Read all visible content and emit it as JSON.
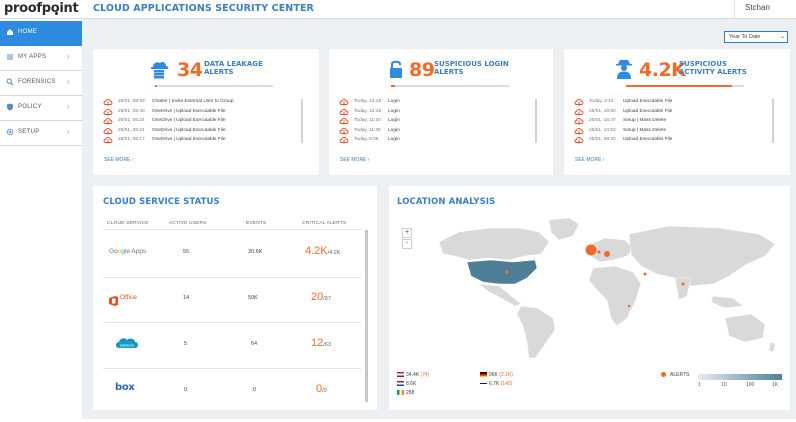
{
  "header": {
    "logo": "proofpoint",
    "title": "CLOUD APPLICATIONS SECURITY CENTER",
    "user": "Stchan"
  },
  "sidebar": {
    "items": [
      {
        "label": "HOME",
        "icon": "home-icon",
        "active": true
      },
      {
        "label": "MY APPS",
        "icon": "list-icon",
        "active": false
      },
      {
        "label": "FORENSICS",
        "icon": "search-icon",
        "active": false
      },
      {
        "label": "POLICY",
        "icon": "shield-icon",
        "active": false
      },
      {
        "label": "SETUP",
        "icon": "gear-icon",
        "active": false
      }
    ]
  },
  "filter": {
    "period": "Year To Date"
  },
  "kpis": [
    {
      "value": "34",
      "label_line1": "DATA LEAKAGE",
      "label_line2": "ALERTS",
      "icon": "cloud-server-icon",
      "fill": 0.02,
      "see_more": "SEE MORE ›",
      "rows": [
        {
          "time": "25/01, 08:53",
          "text": "Chatter | Invite External User to Group"
        },
        {
          "time": "25/01, 05:40",
          "text": "OneDrive | Upload Executable File"
        },
        {
          "time": "25/01, 05:24",
          "text": "OneDrive | Upload Executable File"
        },
        {
          "time": "25/01, 05:21",
          "text": "OneDrive | Upload Executable File"
        },
        {
          "time": "25/01, 05:17",
          "text": "OneDrive | Upload Executable File"
        }
      ]
    },
    {
      "value": "89",
      "label_line1": "SUSPICIOUS LOGIN",
      "label_line2": "ALERTS",
      "icon": "padlock-icon",
      "fill": 0.03,
      "see_more": "SEE MORE ›",
      "rows": [
        {
          "time": "Today, 12:16",
          "text": "Login"
        },
        {
          "time": "Today, 12:16",
          "text": "Login"
        },
        {
          "time": "Today, 11:30",
          "text": "Login"
        },
        {
          "time": "Today, 11:30",
          "text": "Login"
        },
        {
          "time": "Today, 6:06",
          "text": "Login"
        }
      ]
    },
    {
      "value": "4.2K",
      "label_line1": "SUSPICIOUS",
      "label_line2": "ACTIVITY ALERTS",
      "icon": "user-spy-icon",
      "fill": 0.9,
      "see_more": "SEE MORE ›",
      "rows": [
        {
          "time": "Today, 2:13",
          "text": "Upload Executable File"
        },
        {
          "time": "25/01, 16:50",
          "text": "Upload Executable File"
        },
        {
          "time": "25/01, 15:47",
          "text": "Setup | Mass Delete"
        },
        {
          "time": "25/01, 10:52",
          "text": "Setup | Mass Delete"
        },
        {
          "time": "25/01, 09:33",
          "text": "Upload Executable File"
        }
      ]
    }
  ],
  "cloud_status": {
    "title": "CLOUD SERVICE STATUS",
    "columns": [
      "CLOUD SERVICE",
      "ACTIVE USERS",
      "EVENTS",
      "CRITICAL ALERTS"
    ],
    "rows": [
      {
        "service": "Google Apps",
        "logo": "google-apps-logo",
        "users": "55",
        "events": "30.6K",
        "critical": "4.2K",
        "critical_total": "/4.2K"
      },
      {
        "service": "Office",
        "logo": "office-logo",
        "users": "14",
        "events": "50K",
        "critical": "20",
        "critical_total": "/97"
      },
      {
        "service": "salesforce",
        "logo": "salesforce-logo",
        "users": "5",
        "events": "64",
        "critical": "12",
        "critical_total": "/63"
      },
      {
        "service": "box",
        "logo": "box-logo",
        "users": "0",
        "events": "0",
        "critical": "0",
        "critical_total": "/0"
      }
    ]
  },
  "location": {
    "title": "LOCATION ANALYSIS",
    "zoom_in": "+",
    "zoom_out": "-",
    "legend": [
      {
        "value": "34.4K",
        "alerts": "(74)",
        "flag": "us-flag"
      },
      {
        "value": "8.6K",
        "alerts": "",
        "flag": "nl-flag"
      },
      {
        "value": "288",
        "alerts": "",
        "flag": "ie-flag"
      },
      {
        "value": "96K",
        "alerts": "(2.1K)",
        "flag": "de-flag"
      },
      {
        "value": "6.7K",
        "alerts": "(145)",
        "flag": "uk-flag"
      }
    ],
    "alerts_label": "ALERTS",
    "scale": [
      "1",
      "10",
      "100",
      "1K"
    ],
    "colors": {
      "accent": "#f26a2b",
      "land": "#d9d9d9",
      "highlight": "#4f7f98"
    }
  }
}
